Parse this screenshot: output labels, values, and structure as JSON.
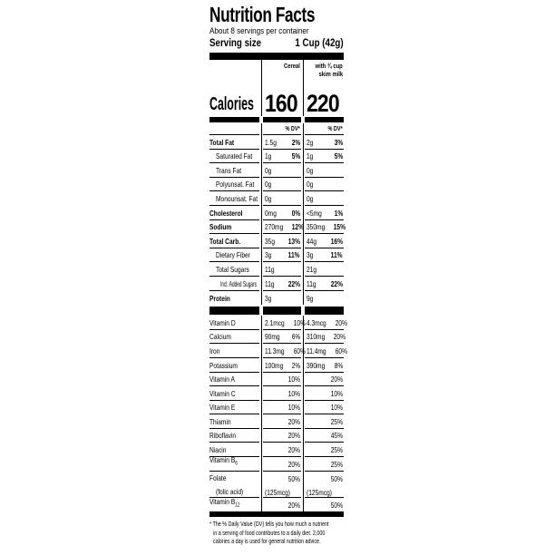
{
  "colors": {
    "text": "#000000",
    "background": "#ffffff"
  },
  "header": {
    "title": "Nutrition Facts",
    "servings_per_container": "About 8 servings per container",
    "serving_size_label": "Serving size",
    "serving_size_value": "1 Cup (42g)"
  },
  "columns": {
    "col1_label": "Cereal",
    "col2_label_line1": "with ¾ cup",
    "col2_label_line2": "skim milk",
    "dv_header": "% DV*"
  },
  "calories": {
    "label": "Calories",
    "col1": "160",
    "col2": "220"
  },
  "nutrients": [
    {
      "name": "Total Fat",
      "bold": true,
      "indent": 0,
      "c1a": "1.5g",
      "c1dv": "2%",
      "c2a": "2g",
      "c2dv": "3%"
    },
    {
      "name": "Saturated Fat",
      "indent": 1,
      "c1a": "1g",
      "c1dv": "5%",
      "c2a": "1g",
      "c2dv": "5%"
    },
    {
      "name": "Trans Fat",
      "indent": 1,
      "c1a": "0g",
      "c2a": "0g"
    },
    {
      "name": "Polyunsat. Fat",
      "indent": 1,
      "c1a": "0g",
      "c2a": "0g"
    },
    {
      "name": "Monounsat. Fat",
      "indent": 1,
      "c1a": "0g",
      "c2a": "0g"
    },
    {
      "name": "Cholesterol",
      "bold": true,
      "indent": 0,
      "c1a": "0mg",
      "c1dv": "0%",
      "c2a": "<5mg",
      "c2dv": "1%"
    },
    {
      "name": "Sodium",
      "bold": true,
      "indent": 0,
      "c1a": "270mg",
      "c1dv": "12%",
      "c2a": "350mg",
      "c2dv": "15%"
    },
    {
      "name": "Total Carb.",
      "bold": true,
      "indent": 0,
      "c1a": "35g",
      "c1dv": "13%",
      "c2a": "44g",
      "c2dv": "16%"
    },
    {
      "name": "Dietary Fiber",
      "indent": 1,
      "c1a": "3g",
      "c1dv": "11%",
      "c2a": "3g",
      "c2dv": "11%"
    },
    {
      "name": "Total Sugars",
      "indent": 1,
      "c1a": "11g",
      "c2a": "21g"
    },
    {
      "name": "Incl. Added Sugars",
      "indent": 2,
      "c1a": "11g",
      "c1dv": "22%",
      "c2a": "11g",
      "c2dv": "22%"
    },
    {
      "name": "Protein",
      "bold": true,
      "indent": 0,
      "c1a": "3g",
      "c2a": "9g"
    }
  ],
  "vitamins": [
    {
      "name": "Vitamin D",
      "c1a": "2.1mcg",
      "c1dv": "10%",
      "c2a": "4.3mcg",
      "c2dv": "20%"
    },
    {
      "name": "Calcium",
      "c1a": "90mg",
      "c1dv": "6%",
      "c2a": "310mg",
      "c2dv": "20%"
    },
    {
      "name": "Iron",
      "c1a": "11.3mg",
      "c1dv": "60%",
      "c2a": "11.4mg",
      "c2dv": "60%"
    },
    {
      "name": "Potassium",
      "c1a": "100mg",
      "c1dv": "2%",
      "c2a": "390mg",
      "c2dv": "8%"
    },
    {
      "name": "Vitamin A",
      "c1dv": "10%",
      "c2dv": "20%"
    },
    {
      "name": "Vitamin C",
      "c1dv": "10%",
      "c2dv": "10%"
    },
    {
      "name": "Vitamin E",
      "c1dv": "10%",
      "c2dv": "10%"
    },
    {
      "name": "Thiamin",
      "c1dv": "20%",
      "c2dv": "25%"
    },
    {
      "name": "Riboflavin",
      "c1dv": "20%",
      "c2dv": "45%"
    },
    {
      "name": "Niacin",
      "c1dv": "20%",
      "c2dv": "25%"
    },
    {
      "name": "Vitamin B",
      "name_sub": "6",
      "c1dv": "20%",
      "c2dv": "25%"
    },
    {
      "name": "Folate",
      "name2": "(folic acid)",
      "c1dv": "50%",
      "c1a2": "(125mcg)",
      "c2dv": "50%",
      "c2a2": "(125mcg)"
    },
    {
      "name": "Vitamin B",
      "name_sub": "12",
      "c1dv": "20%",
      "c2dv": "50%"
    }
  ],
  "footnote_lines": [
    "* The % Daily Value (DV) tells you how much a nutrient",
    "in a serving of food contributes to a daily diet. 2,000",
    "calories a day is used for general nutrition advice."
  ]
}
